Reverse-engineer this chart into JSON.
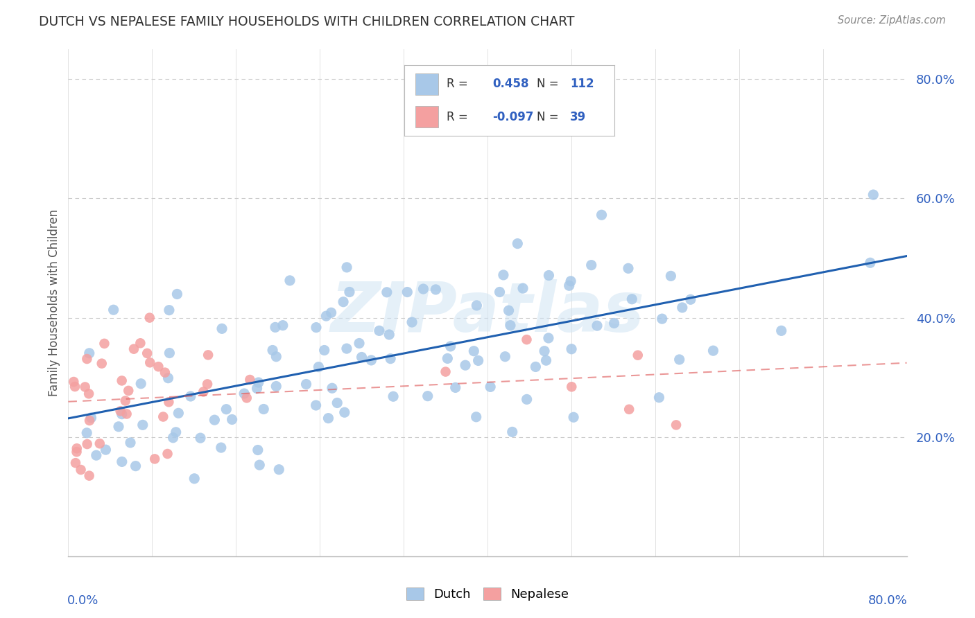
{
  "title": "DUTCH VS NEPALESE FAMILY HOUSEHOLDS WITH CHILDREN CORRELATION CHART",
  "source_text": "Source: ZipAtlas.com",
  "ylabel": "Family Households with Children",
  "background_color": "#ffffff",
  "watermark": "ZIPatlas",
  "dutch_color": "#a8c8e8",
  "nepalese_color": "#f4a0a0",
  "dutch_line_color": "#2060b0",
  "nepalese_line_color": "#e06060",
  "dutch_R": 0.458,
  "dutch_N": 112,
  "nepalese_R": -0.097,
  "nepalese_N": 39,
  "xlim": [
    0.0,
    0.8
  ],
  "ylim": [
    0.0,
    0.85
  ],
  "ytick_right": [
    "20.0%",
    "40.0%",
    "60.0%",
    "80.0%"
  ],
  "ytick_right_vals": [
    0.2,
    0.4,
    0.6,
    0.8
  ],
  "legend_R_color": "#3060c0",
  "grid_color": "#cccccc"
}
